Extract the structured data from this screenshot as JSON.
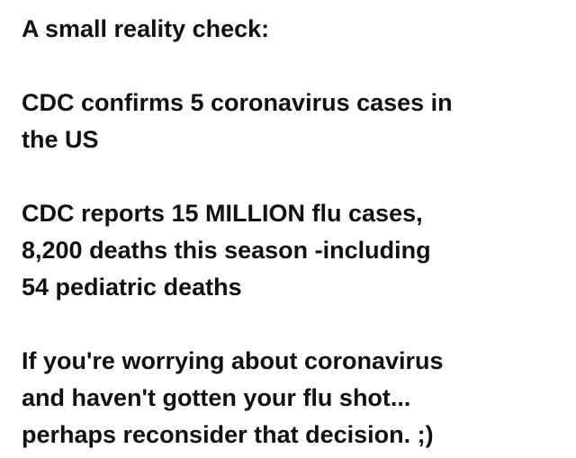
{
  "post": {
    "title": "A small reality check:",
    "paragraph_1": "CDC confirms 5 coronavirus cases in\nthe US",
    "paragraph_2": "CDC reports 15 MILLION flu cases,\n8,200 deaths this season -including\n54 pediatric deaths",
    "paragraph_3": "If you're worrying about coronavirus\nand haven't gotten your flu shot...\nperhaps reconsider that decision.  ;)"
  }
}
